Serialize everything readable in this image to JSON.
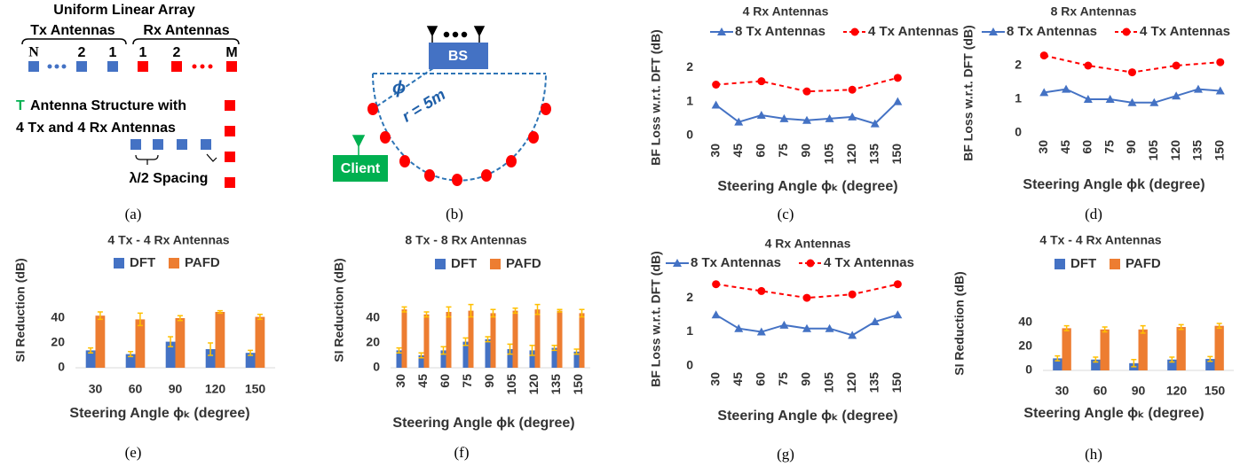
{
  "diagram_a": {
    "title": "Uniform Linear Array",
    "tx_label": "Tx Antennas",
    "rx_label": "Rx Antennas",
    "tx_indices": [
      "N",
      "2",
      "1"
    ],
    "rx_indices": [
      "1",
      "2",
      "M"
    ],
    "structure_letter": "T",
    "structure_line1": "Antenna Structure with",
    "structure_line2": "4 Tx and 4 Rx Antennas",
    "spacing": "λ/2 Spacing"
  },
  "diagram_b": {
    "bs": "BS",
    "angle": "ϕ",
    "radius": "r = 5m",
    "client": "Client"
  },
  "captions": [
    "(a)",
    "(b)",
    "(c)",
    "(d)",
    "(e)",
    "(f)",
    "(g)",
    "(h)"
  ],
  "chart_data": [
    {
      "type": "line",
      "title": "4 Rx Antennas",
      "xlabel": "Steering Angle ϕₖ (degree)",
      "ylabel": "BF Loss w.r.t. DFT (dB)",
      "xlim": [
        22,
        158
      ],
      "xticks": [
        30,
        45,
        60,
        75,
        90,
        105,
        120,
        135,
        150
      ],
      "ylim": [
        0,
        2.4
      ],
      "yticks": [
        0,
        1,
        2
      ],
      "series": [
        {
          "name": "8 Tx Antennas",
          "color": "#4472c4",
          "marker": "triangle",
          "linestyle": "solid",
          "x": [
            30,
            45,
            60,
            75,
            90,
            105,
            120,
            135,
            150
          ],
          "values": [
            0.9,
            0.4,
            0.6,
            0.5,
            0.45,
            0.5,
            0.55,
            0.35,
            1.0
          ]
        },
        {
          "name": "4 Tx Antennas",
          "color": "#ff0000",
          "marker": "circle",
          "linestyle": "dashed",
          "x": [
            30,
            60,
            90,
            120,
            150
          ],
          "values": [
            1.5,
            1.6,
            1.3,
            1.35,
            1.7
          ]
        }
      ]
    },
    {
      "type": "line",
      "title": "8 Rx Antennas",
      "xlabel": "Steering Angle ϕk (degree)",
      "ylabel": "BF Loss w.r.t. DFT (dB)",
      "xlim": [
        22,
        158
      ],
      "xticks": [
        30,
        45,
        60,
        75,
        90,
        105,
        120,
        135,
        150
      ],
      "ylim": [
        0,
        2.5
      ],
      "yticks": [
        0,
        1,
        2
      ],
      "series": [
        {
          "name": "8 Tx Antennas",
          "color": "#4472c4",
          "marker": "triangle",
          "linestyle": "solid",
          "x": [
            30,
            45,
            60,
            75,
            90,
            105,
            120,
            135,
            150
          ],
          "values": [
            1.2,
            1.3,
            1.0,
            1.0,
            0.9,
            0.9,
            1.1,
            1.3,
            1.25
          ]
        },
        {
          "name": "4 Tx Antennas",
          "color": "#ff0000",
          "marker": "circle",
          "linestyle": "dashed",
          "x": [
            30,
            60,
            90,
            120,
            150
          ],
          "values": [
            2.3,
            2.0,
            1.8,
            2.0,
            2.1
          ]
        }
      ]
    },
    {
      "type": "bar",
      "title": "4 Tx - 4 Rx Antennas",
      "xlabel": "Steering Angle ϕₖ (degree)",
      "ylabel": "SI Reduction (dB)",
      "categories": [
        "30",
        "60",
        "90",
        "120",
        "150"
      ],
      "ylim": [
        0,
        50
      ],
      "yticks": [
        0,
        20,
        40
      ],
      "error_color": "#ffc000",
      "series": [
        {
          "name": "DFT",
          "color": "#4472c4",
          "values": [
            14,
            11,
            21,
            15,
            12
          ],
          "errors": [
            2,
            2,
            4,
            5,
            2
          ]
        },
        {
          "name": "PAFD",
          "color": "#ed7d31",
          "values": [
            42,
            39,
            40,
            45,
            41
          ],
          "errors": [
            3,
            5,
            2,
            1,
            2
          ]
        }
      ]
    },
    {
      "type": "bar",
      "title": "8 Tx - 8 Rx Antennas",
      "xlabel": "Steering Angle ϕk (degree)",
      "ylabel": "SI Reduction (dB)",
      "categories": [
        "30",
        "45",
        "60",
        "75",
        "90",
        "105",
        "120",
        "135",
        "150"
      ],
      "ylim": [
        0,
        50
      ],
      "yticks": [
        0,
        20,
        40
      ],
      "error_color": "#ffc000",
      "series": [
        {
          "name": "DFT",
          "color": "#4472c4",
          "values": [
            14,
            10,
            14,
            21,
            23,
            15,
            14,
            16,
            13
          ],
          "errors": [
            2,
            2,
            3,
            3,
            2,
            4,
            4,
            2,
            2
          ]
        },
        {
          "name": "PAFD",
          "color": "#ed7d31",
          "values": [
            47,
            43,
            45,
            46,
            44,
            46,
            47,
            46,
            44
          ],
          "errors": [
            2,
            2,
            4,
            5,
            3,
            2,
            4,
            1,
            3
          ]
        }
      ]
    },
    {
      "type": "line",
      "title": "4 Rx Antennas",
      "xlabel": "Steering Angle ϕₖ (degree)",
      "ylabel": "BF Loss w.r.t. DFT (dB)",
      "xlim": [
        22,
        158
      ],
      "xticks": [
        30,
        45,
        60,
        75,
        90,
        105,
        120,
        135,
        150
      ],
      "ylim": [
        0,
        2.6
      ],
      "yticks": [
        0,
        1,
        2
      ],
      "series": [
        {
          "name": "8 Tx Antennas",
          "color": "#4472c4",
          "marker": "triangle",
          "linestyle": "solid",
          "x": [
            30,
            45,
            60,
            75,
            90,
            105,
            120,
            135,
            150
          ],
          "values": [
            1.5,
            1.1,
            1.0,
            1.2,
            1.1,
            1.1,
            0.9,
            1.3,
            1.5
          ]
        },
        {
          "name": "4 Tx Antennas",
          "color": "#ff0000",
          "marker": "circle",
          "linestyle": "dashed",
          "x": [
            30,
            60,
            90,
            120,
            150
          ],
          "values": [
            2.4,
            2.2,
            2.0,
            2.1,
            2.4
          ]
        }
      ]
    },
    {
      "type": "bar",
      "title": "4 Tx - 4 Rx Antennas",
      "xlabel": "Steering Angle ϕₖ (degree)",
      "ylabel": "SI Reduction (dB)",
      "categories": [
        "30",
        "60",
        "90",
        "120",
        "150"
      ],
      "ylim": [
        0,
        50
      ],
      "yticks": [
        0,
        20,
        40
      ],
      "error_color": "#ffc000",
      "series": [
        {
          "name": "DFT",
          "color": "#4472c4",
          "values": [
            10,
            9,
            6,
            9,
            9.5
          ],
          "errors": [
            2,
            2,
            3,
            2,
            2
          ]
        },
        {
          "name": "PAFD",
          "color": "#ed7d31",
          "values": [
            35,
            34,
            34,
            36,
            37
          ],
          "errors": [
            2,
            2,
            3,
            2,
            2
          ]
        }
      ]
    }
  ]
}
